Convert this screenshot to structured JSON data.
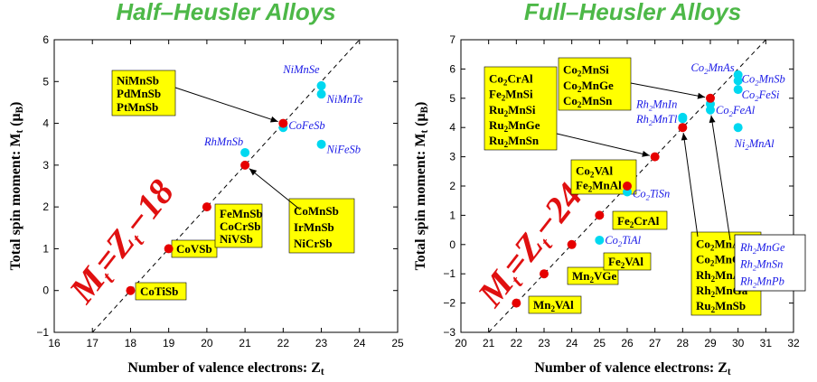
{
  "colors": {
    "title": "#4db848",
    "box": "#ffff00",
    "red_point": "#e60000",
    "cyan_point": "#00d8f0",
    "cyan_text": "#1a1ae6",
    "rule": "#e01010"
  },
  "chart_data": [
    {
      "type": "scatter",
      "title": "Half–Heusler Alloys",
      "xlabel": "Number of valence electrons: Z",
      "xlabel_sub": "t",
      "ylabel": "Total spin moment: M",
      "ylabel_sub": "t",
      "ylabel_unit": " (μ",
      "ylabel_unit_sub": "B",
      "ylabel_close": ")",
      "xlim": [
        16,
        25
      ],
      "ylim": [
        -1,
        6
      ],
      "xticks": [
        "16",
        "17",
        "18",
        "19",
        "20",
        "21",
        "22",
        "23",
        "24",
        "25"
      ],
      "yticks": [
        "−1",
        "0",
        "1",
        "2",
        "3",
        "4",
        "5",
        "6"
      ],
      "grid": false,
      "rule": {
        "m": "M",
        "t1": "t",
        "eq": "=Z",
        "t2": "t",
        "rest": "−18"
      },
      "line": {
        "slope": 1,
        "intercept": -18
      },
      "red_points": [
        {
          "x": 18,
          "y": 0
        },
        {
          "x": 19,
          "y": 1
        },
        {
          "x": 20,
          "y": 2
        },
        {
          "x": 21,
          "y": 3
        },
        {
          "x": 22,
          "y": 4
        }
      ],
      "cyan_points": [
        {
          "x": 21,
          "y": 3.3,
          "label": "RhMnSb"
        },
        {
          "x": 22,
          "y": 3.9,
          "label": "CoFeSb"
        },
        {
          "x": 23,
          "y": 4.9,
          "label": "NiMnSe"
        },
        {
          "x": 23,
          "y": 4.7,
          "label": "NiMnTe"
        },
        {
          "x": 23,
          "y": 3.5,
          "label": "NiFeSb"
        }
      ],
      "boxes": [
        {
          "lines": [
            "CoTiSb"
          ]
        },
        {
          "lines": [
            "CoVSb"
          ]
        },
        {
          "lines": [
            "FeMnSb",
            "CoCrSb",
            "NiVSb"
          ]
        },
        {
          "lines": [
            "NiMnSb",
            "PdMnSb",
            "PtMnSb"
          ]
        },
        {
          "lines": [
            "CoMnSb",
            "IrMnSb",
            "NiCrSb"
          ]
        }
      ]
    },
    {
      "type": "scatter",
      "title": "Full–Heusler Alloys",
      "xlabel": "Number of valence electrons: Z",
      "xlabel_sub": "t",
      "ylabel": "Total spin moment: M",
      "ylabel_sub": "t",
      "ylabel_unit": " (μ",
      "ylabel_unit_sub": "B",
      "ylabel_close": ")",
      "xlim": [
        20,
        32
      ],
      "ylim": [
        -3,
        7
      ],
      "xticks": [
        "20",
        "21",
        "22",
        "23",
        "24",
        "25",
        "26",
        "27",
        "28",
        "29",
        "30",
        "31",
        "32"
      ],
      "yticks": [
        "−3",
        "−2",
        "−1",
        "0",
        "1",
        "2",
        "3",
        "4",
        "5",
        "6",
        "7"
      ],
      "grid": false,
      "rule": {
        "m": "M",
        "t1": "t",
        "eq": "=Z",
        "t2": "t",
        "rest": "−24"
      },
      "line": {
        "slope": 1,
        "intercept": -24
      },
      "red_points": [
        {
          "x": 22,
          "y": -2
        },
        {
          "x": 23,
          "y": -1
        },
        {
          "x": 24,
          "y": 0
        },
        {
          "x": 25,
          "y": 1
        },
        {
          "x": 26,
          "y": 2
        },
        {
          "x": 27,
          "y": 3
        },
        {
          "x": 28,
          "y": 4
        },
        {
          "x": 29,
          "y": 5
        }
      ],
      "cyan_points": [
        {
          "x": 25,
          "y": 0.15,
          "parts": [
            [
              "Co",
              ""
            ],
            [
              "2",
              "sub"
            ],
            [
              "TiAl",
              ""
            ]
          ]
        },
        {
          "x": 26,
          "y": 1.8,
          "parts": [
            [
              "Co",
              ""
            ],
            [
              "2",
              "sub"
            ],
            [
              "TiSn",
              ""
            ]
          ]
        },
        {
          "x": 28,
          "y": 4.3,
          "parts": [
            [
              "Rh",
              ""
            ],
            [
              "2",
              "sub"
            ],
            [
              "MnIn",
              ""
            ]
          ]
        },
        {
          "x": 28,
          "y": 4.35,
          "parts": [
            [
              "Rh",
              ""
            ],
            [
              "2",
              "sub"
            ],
            [
              "MnTl",
              ""
            ]
          ]
        },
        {
          "x": 29,
          "y": 4.6,
          "parts": [
            [
              "Co",
              ""
            ],
            [
              "2",
              "sub"
            ],
            [
              "FeAl",
              ""
            ]
          ]
        },
        {
          "x": 29,
          "y": 4.8
        },
        {
          "x": 30,
          "y": 5.8,
          "parts": [
            [
              "Co",
              ""
            ],
            [
              "2",
              "sub"
            ],
            [
              "MnAs",
              ""
            ]
          ]
        },
        {
          "x": 30,
          "y": 5.6,
          "parts": [
            [
              "Co",
              ""
            ],
            [
              "2",
              "sub"
            ],
            [
              "MnSb",
              ""
            ]
          ]
        },
        {
          "x": 30,
          "y": 5.3,
          "parts": [
            [
              "Co",
              ""
            ],
            [
              "2",
              "sub"
            ],
            [
              "FeSi",
              ""
            ]
          ]
        },
        {
          "x": 30,
          "y": 4.0,
          "parts": [
            [
              "Ni",
              ""
            ],
            [
              "2",
              "sub"
            ],
            [
              "MnAl",
              ""
            ]
          ]
        }
      ],
      "boxes": [
        {
          "lines": [
            [
              [
                "Mn",
                ""
              ],
              [
                "2",
                "sub"
              ],
              [
                "VAl",
                ""
              ]
            ]
          ]
        },
        {
          "lines": [
            [
              [
                "Mn",
                ""
              ],
              [
                "2",
                "sub"
              ],
              [
                "VGe",
                ""
              ]
            ]
          ]
        },
        {
          "lines": [
            [
              [
                "Fe",
                ""
              ],
              [
                "2",
                "sub"
              ],
              [
                "VAl",
                ""
              ]
            ]
          ]
        },
        {
          "lines": [
            [
              [
                "Fe",
                ""
              ],
              [
                "2",
                "sub"
              ],
              [
                "CrAl",
                ""
              ]
            ]
          ]
        },
        {
          "lines": [
            [
              [
                "Co",
                ""
              ],
              [
                "2",
                "sub"
              ],
              [
                "VAl",
                ""
              ]
            ],
            [
              [
                "Fe",
                ""
              ],
              [
                "2",
                "sub"
              ],
              [
                "MnAl",
                ""
              ]
            ]
          ]
        },
        {
          "lines": [
            [
              [
                "Co",
                ""
              ],
              [
                "2",
                "sub"
              ],
              [
                "CrAl",
                ""
              ]
            ],
            [
              [
                "Fe",
                ""
              ],
              [
                "2",
                "sub"
              ],
              [
                "MnSi",
                ""
              ]
            ],
            [
              [
                "Ru",
                ""
              ],
              [
                "2",
                "sub"
              ],
              [
                "MnSi",
                ""
              ]
            ],
            [
              [
                "Ru",
                ""
              ],
              [
                "2",
                "sub"
              ],
              [
                "MnGe",
                ""
              ]
            ],
            [
              [
                "Ru",
                ""
              ],
              [
                "2",
                "sub"
              ],
              [
                "MnSn",
                ""
              ]
            ]
          ]
        },
        {
          "lines": [
            [
              [
                "Co",
                ""
              ],
              [
                "2",
                "sub"
              ],
              [
                "MnSi",
                ""
              ]
            ],
            [
              [
                "Co",
                ""
              ],
              [
                "2",
                "sub"
              ],
              [
                "MnGe",
                ""
              ]
            ],
            [
              [
                "Co",
                ""
              ],
              [
                "2",
                "sub"
              ],
              [
                "MnSn",
                ""
              ]
            ]
          ]
        },
        {
          "lines": [
            [
              [
                "Co",
                ""
              ],
              [
                "2",
                "sub"
              ],
              [
                "MnAl",
                ""
              ]
            ],
            [
              [
                "Co",
                ""
              ],
              [
                "2",
                "sub"
              ],
              [
                "MnGa",
                ""
              ]
            ],
            [
              [
                "Rh",
                ""
              ],
              [
                "2",
                "sub"
              ],
              [
                "MnAl",
                ""
              ]
            ],
            [
              [
                "Rh",
                ""
              ],
              [
                "2",
                "sub"
              ],
              [
                "MnGa",
                ""
              ]
            ],
            [
              [
                "Ru",
                ""
              ],
              [
                "2",
                "sub"
              ],
              [
                "MnSb",
                ""
              ]
            ]
          ]
        }
      ],
      "cyan_box": {
        "lines": [
          [
            [
              "Rh",
              ""
            ],
            [
              "2",
              "sub"
            ],
            [
              "MnGe",
              ""
            ]
          ],
          [
            [
              "Rh",
              ""
            ],
            [
              "2",
              "sub"
            ],
            [
              "MnSn",
              ""
            ]
          ],
          [
            [
              "Rh",
              ""
            ],
            [
              "2",
              "sub"
            ],
            [
              "MnPb",
              ""
            ]
          ]
        ]
      }
    }
  ]
}
